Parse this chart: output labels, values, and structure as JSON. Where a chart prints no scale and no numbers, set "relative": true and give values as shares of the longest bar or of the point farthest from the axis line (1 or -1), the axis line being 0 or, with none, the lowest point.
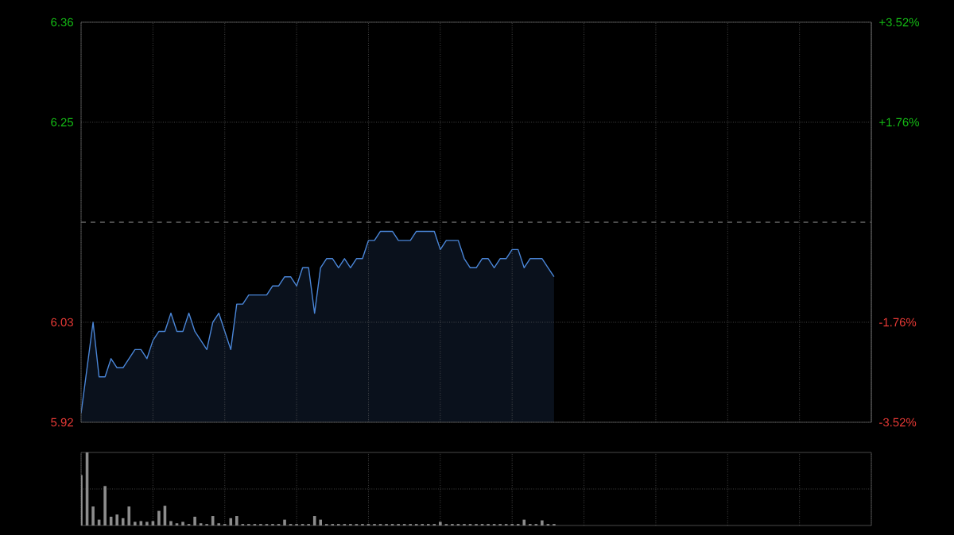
{
  "chart_data": [
    {
      "type": "area",
      "color": "#4a86d8",
      "grid": true,
      "categories": [
        null,
        null,
        null,
        null,
        null,
        null,
        null,
        null,
        null,
        null,
        null,
        null,
        null,
        null,
        null,
        null,
        null,
        null,
        null,
        null,
        null,
        null,
        null,
        null,
        null,
        null,
        null,
        null,
        null,
        null,
        null,
        null,
        null,
        null,
        null,
        null,
        null,
        null,
        null,
        null,
        null,
        null,
        null,
        null,
        null,
        null,
        null,
        null,
        null,
        null,
        null,
        null,
        null,
        null,
        null,
        null,
        null,
        null,
        null,
        null,
        null,
        null,
        null,
        null,
        null,
        null,
        null,
        null,
        null,
        null,
        null,
        null,
        null,
        null,
        null,
        null,
        null,
        null,
        null,
        null,
        null,
        null,
        null,
        null,
        null,
        null,
        null,
        null,
        null,
        null,
        null,
        null,
        null,
        null,
        null,
        null,
        null,
        null,
        null,
        null,
        null,
        null,
        null,
        null,
        null,
        null,
        null,
        null,
        null,
        null,
        null,
        null,
        null,
        null,
        null,
        null,
        null,
        null,
        null,
        null,
        null,
        null,
        null,
        null,
        null,
        null,
        null,
        null,
        null,
        null,
        null,
        null,
        null
      ],
      "values": [
        5.93,
        5.98,
        6.03,
        5.97,
        5.97,
        5.99,
        5.98,
        5.98,
        5.99,
        6.0,
        6.0,
        5.99,
        6.01,
        6.02,
        6.02,
        6.04,
        6.02,
        6.02,
        6.04,
        6.02,
        6.01,
        6.0,
        6.03,
        6.04,
        6.02,
        6.0,
        6.05,
        6.05,
        6.06,
        6.06,
        6.06,
        6.06,
        6.07,
        6.07,
        6.08,
        6.08,
        6.07,
        6.09,
        6.09,
        6.04,
        6.09,
        6.1,
        6.1,
        6.09,
        6.1,
        6.09,
        6.1,
        6.1,
        6.12,
        6.12,
        6.13,
        6.13,
        6.13,
        6.12,
        6.12,
        6.12,
        6.13,
        6.13,
        6.13,
        6.13,
        6.11,
        6.12,
        6.12,
        6.12,
        6.1,
        6.09,
        6.09,
        6.1,
        6.1,
        6.09,
        6.1,
        6.1,
        6.11,
        6.11,
        6.09,
        6.1,
        6.1,
        6.1,
        6.09,
        6.08,
        null,
        null,
        null,
        null,
        null,
        null,
        null,
        null,
        null,
        null,
        null,
        null,
        null,
        null,
        null,
        null,
        null,
        null,
        null,
        null,
        null,
        null,
        null,
        null,
        null,
        null,
        null,
        null,
        null,
        null,
        null,
        null,
        null,
        null,
        null,
        null,
        null,
        null,
        null,
        null,
        null,
        null,
        null,
        null,
        null,
        null,
        null,
        null,
        null,
        null,
        null,
        null,
        null
      ],
      "ylim": [
        5.92,
        6.36
      ],
      "yticks": [
        6.36,
        6.25,
        6.03,
        5.92
      ],
      "y2lim": [
        -3.52,
        3.52
      ],
      "y2ticks": [
        {
          "value": 3.52,
          "label": "+3.52%"
        },
        {
          "value": 1.76,
          "label": "+1.76%"
        },
        {
          "value": -1.76,
          "label": "-1.76%"
        },
        {
          "value": -3.52,
          "label": "-3.52%"
        }
      ],
      "ref_lines": [
        {
          "axis": "y",
          "value": 6.14,
          "line_style": "dashed"
        }
      ]
    },
    {
      "type": "bar",
      "relative": true,
      "color": "#8c8c8c",
      "grid": true,
      "categories": [
        null,
        null,
        null,
        null,
        null,
        null,
        null,
        null,
        null,
        null,
        null,
        null,
        null,
        null,
        null,
        null,
        null,
        null,
        null,
        null,
        null,
        null,
        null,
        null,
        null,
        null,
        null,
        null,
        null,
        null,
        null,
        null,
        null,
        null,
        null,
        null,
        null,
        null,
        null,
        null,
        null,
        null,
        null,
        null,
        null,
        null,
        null,
        null,
        null,
        null,
        null,
        null,
        null,
        null,
        null,
        null,
        null,
        null,
        null,
        null,
        null,
        null,
        null,
        null,
        null,
        null,
        null,
        null,
        null,
        null,
        null,
        null,
        null,
        null,
        null,
        null,
        null,
        null,
        null,
        null,
        null,
        null,
        null,
        null,
        null,
        null,
        null,
        null,
        null,
        null,
        null,
        null,
        null,
        null,
        null,
        null,
        null,
        null,
        null,
        null,
        null,
        null,
        null,
        null,
        null,
        null,
        null,
        null,
        null,
        null,
        null,
        null,
        null,
        null,
        null,
        null,
        null,
        null,
        null,
        null,
        null,
        null,
        null,
        null,
        null,
        null,
        null,
        null,
        null,
        null,
        null,
        null,
        null
      ],
      "values": [
        0.69,
        1,
        0.26,
        0.08,
        0.54,
        0.12,
        0.15,
        0.1,
        0.26,
        0.05,
        0.06,
        0.05,
        0.06,
        0.2,
        0.27,
        0.06,
        0.03,
        0.05,
        0.02,
        0.12,
        0.03,
        0.02,
        0.13,
        0.03,
        0.02,
        0.1,
        0.13,
        0.02,
        0.02,
        0.02,
        0.02,
        0.02,
        0.02,
        0.02,
        0.08,
        0.02,
        0.02,
        0.02,
        0.02,
        0.13,
        0.08,
        0.02,
        0.02,
        0.02,
        0.02,
        0.02,
        0.02,
        0.02,
        0.02,
        0.02,
        0.02,
        0.02,
        0.02,
        0.02,
        0.02,
        0.02,
        0.02,
        0.02,
        0.02,
        0.02,
        0.05,
        0.02,
        0.02,
        0.02,
        0.02,
        0.02,
        0.02,
        0.02,
        0.02,
        0.02,
        0.02,
        0.02,
        0.02,
        0.02,
        0.08,
        0.02,
        0.02,
        0.07,
        0.02,
        0.02,
        null,
        null,
        null,
        null,
        null,
        null,
        null,
        null,
        null,
        null,
        null,
        null,
        null,
        null,
        null,
        null,
        null,
        null,
        null,
        null,
        null,
        null,
        null,
        null,
        null,
        null,
        null,
        null,
        null,
        null,
        null,
        null,
        null,
        null,
        null,
        null,
        null,
        null,
        null,
        null,
        null,
        null,
        null,
        null,
        null,
        null,
        null,
        null,
        null,
        null,
        null,
        null,
        null
      ]
    }
  ]
}
